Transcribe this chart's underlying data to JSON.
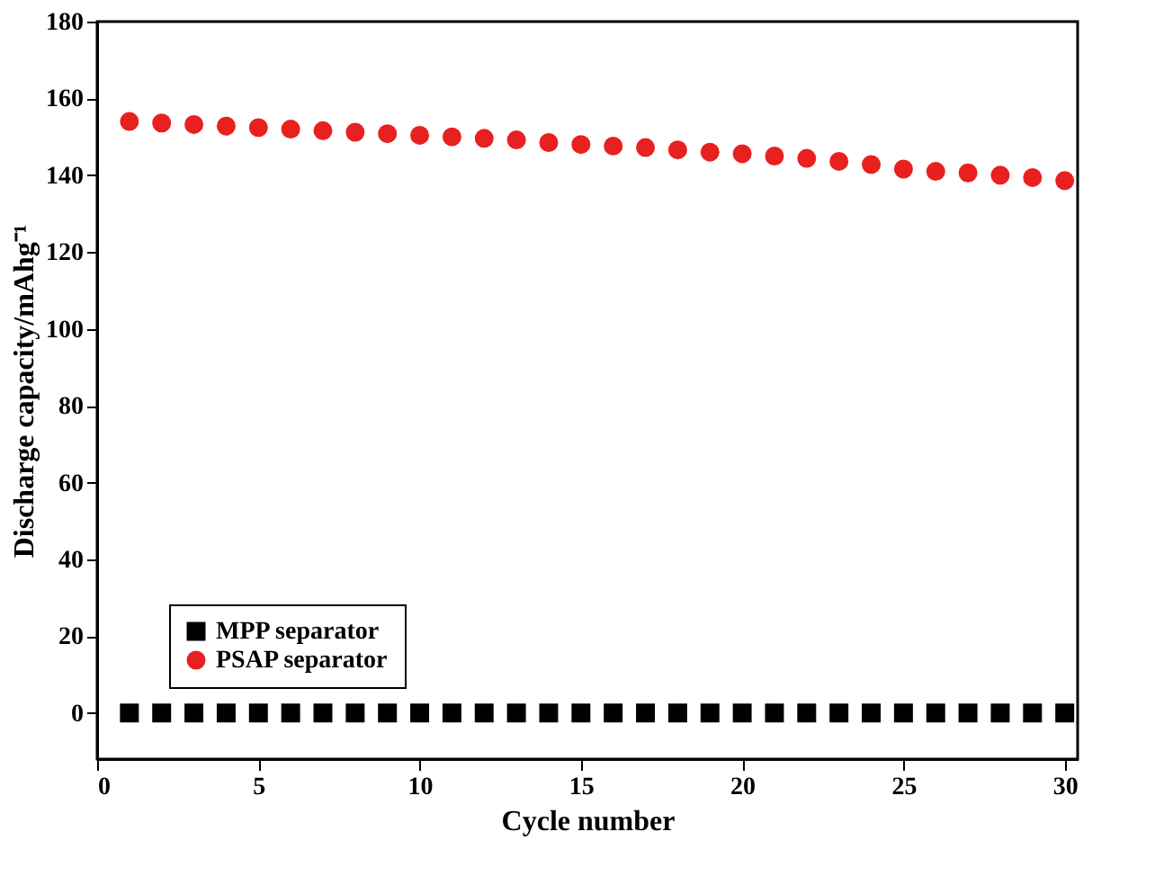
{
  "chart_data": {
    "type": "scatter",
    "xlabel": "Cycle number",
    "ylabel": "Discharge capacity/mAhg⁻¹",
    "x": [
      1,
      2,
      3,
      4,
      5,
      6,
      7,
      8,
      9,
      10,
      11,
      12,
      13,
      14,
      15,
      16,
      17,
      18,
      19,
      20,
      21,
      22,
      23,
      24,
      25,
      26,
      27,
      28,
      29,
      30
    ],
    "series": [
      {
        "name": "MPP separator",
        "color": "#000000",
        "marker": "square",
        "values": [
          0,
          0,
          0,
          0,
          0,
          0,
          0,
          0,
          0,
          0,
          0,
          0,
          0,
          0,
          0,
          0,
          0,
          0,
          0,
          0,
          0,
          0,
          0,
          0,
          0,
          0,
          0,
          0,
          0,
          0
        ]
      },
      {
        "name": "PSAP separator",
        "color": "#e8201f",
        "marker": "circle",
        "values": [
          154,
          153.6,
          153.2,
          152.8,
          152.4,
          152,
          151.6,
          151.2,
          150.8,
          150.4,
          150,
          149.6,
          149.2,
          148.5,
          148,
          147.6,
          147.2,
          146.6,
          146,
          145.6,
          145,
          144.4,
          143.6,
          142.8,
          141.6,
          141,
          140.6,
          140,
          139.4,
          138.6
        ]
      }
    ],
    "xlim": [
      0,
      30.4
    ],
    "xticks": [
      0,
      5,
      10,
      15,
      20,
      25,
      30
    ],
    "ylim": [
      -12,
      180
    ],
    "yticks": [
      0,
      20,
      40,
      60,
      80,
      100,
      120,
      140,
      160,
      180
    ],
    "grid": false,
    "legend": "bottom left"
  }
}
